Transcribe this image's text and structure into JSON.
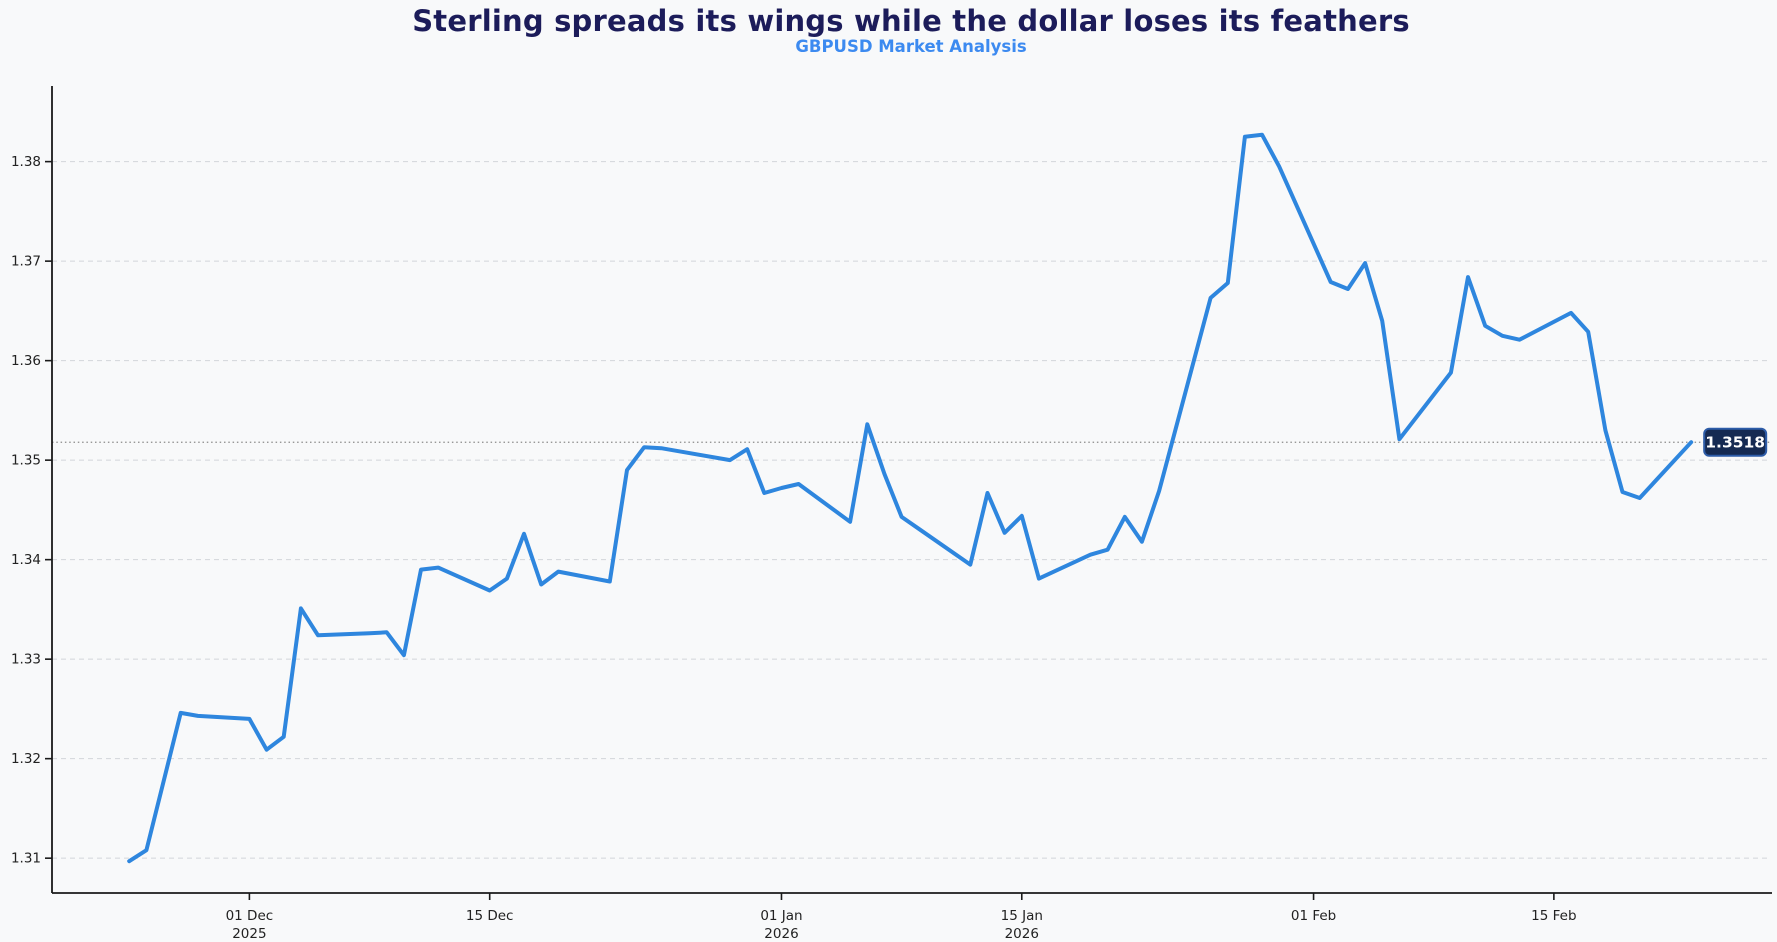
{
  "header": {
    "title": "Sterling spreads its wings while the dollar loses its feathers",
    "subtitle": "GBPUSD Market Analysis"
  },
  "annotation": {
    "label": "1.3518",
    "box_fill": "#152a52",
    "box_border": "#2d5ca8",
    "text_color": "#ffffff"
  },
  "colors": {
    "background": "#f8f9fa",
    "title": "#1c1c5a",
    "subtitle": "#3c8af0",
    "line": "#2e86de",
    "grid": "#d2d5da",
    "price_dotted_line": "#8a8a8a",
    "spine": "#1a1a1a",
    "tick_label": "#222222"
  },
  "chart_data": {
    "type": "line",
    "title": "Sterling spreads its wings while the dollar loses its feathers",
    "subtitle": "GBPUSD Market Analysis",
    "xlabel": "",
    "ylabel": "",
    "grid": "horizontal-dashed",
    "legend": "none",
    "current_price": 1.3518,
    "current_price_label": "1.3518",
    "ylim": [
      1.3065,
      1.3876
    ],
    "xlim": [
      "2025-11-19T12:00:00",
      "2026-02-27T17:00:00"
    ],
    "yticks": [
      1.31,
      1.32,
      1.33,
      1.34,
      1.35,
      1.36,
      1.37,
      1.38
    ],
    "ytick_labels": [
      "1.31",
      "1.32",
      "1.33",
      "1.34",
      "1.35",
      "1.36",
      "1.37",
      "1.38"
    ],
    "xticks": [
      {
        "date": "2025-12-01",
        "label": "01 Dec",
        "year": "2025"
      },
      {
        "date": "2025-12-15",
        "label": "15 Dec",
        "year": ""
      },
      {
        "date": "2026-01-01",
        "label": "01 Jan",
        "year": "2026"
      },
      {
        "date": "2026-01-15",
        "label": "15 Jan",
        "year": "2026"
      },
      {
        "date": "2026-02-01",
        "label": "01 Feb",
        "year": ""
      },
      {
        "date": "2026-02-15",
        "label": "15 Feb",
        "year": ""
      }
    ],
    "series": [
      {
        "name": "GBPUSD",
        "color": "#2e86de",
        "dates": [
          "2025-11-24",
          "2025-11-25",
          "2025-11-27",
          "2025-11-28",
          "2025-12-01",
          "2025-12-02",
          "2025-12-03",
          "2025-12-04",
          "2025-12-05",
          "2025-12-08",
          "2025-12-09",
          "2025-12-10",
          "2025-12-11",
          "2025-12-12",
          "2025-12-15",
          "2025-12-16",
          "2025-12-17",
          "2025-12-18",
          "2025-12-19",
          "2025-12-22",
          "2025-12-23",
          "2025-12-24",
          "2025-12-25",
          "2025-12-26",
          "2025-12-29",
          "2025-12-30",
          "2025-12-31",
          "2026-01-01",
          "2026-01-02",
          "2026-01-05",
          "2026-01-06",
          "2026-01-07",
          "2026-01-08",
          "2026-01-09",
          "2026-01-12",
          "2026-01-13",
          "2026-01-14",
          "2026-01-15",
          "2026-01-16",
          "2026-01-19",
          "2026-01-20",
          "2026-01-21",
          "2026-01-22",
          "2026-01-23",
          "2026-01-26",
          "2026-01-27",
          "2026-01-28",
          "2026-01-29",
          "2026-01-30",
          "2026-02-02",
          "2026-02-03",
          "2026-02-04",
          "2026-02-05",
          "2026-02-06",
          "2026-02-09",
          "2026-02-10",
          "2026-02-11",
          "2026-02-12",
          "2026-02-13",
          "2026-02-16",
          "2026-02-17",
          "2026-02-18",
          "2026-02-19",
          "2026-02-20",
          "2026-02-23"
        ],
        "values": [
          1.3097,
          1.3108,
          1.3246,
          1.3243,
          1.324,
          1.3209,
          1.3222,
          1.3351,
          1.3324,
          1.3326,
          1.3327,
          1.3304,
          1.339,
          1.3392,
          1.3369,
          1.3381,
          1.3426,
          1.3375,
          1.3388,
          1.3378,
          1.349,
          1.3513,
          1.3512,
          1.3509,
          1.35,
          1.3511,
          1.3467,
          1.3472,
          1.3476,
          1.3438,
          1.3536,
          1.3486,
          1.3443,
          1.3431,
          1.3395,
          1.3467,
          1.3427,
          1.3444,
          1.3381,
          1.3405,
          1.341,
          1.3443,
          1.3418,
          1.3469,
          1.3663,
          1.3678,
          1.3825,
          1.3827,
          1.3795,
          1.3679,
          1.3672,
          1.3698,
          1.364,
          1.3521,
          1.3588,
          1.3684,
          1.3635,
          1.3625,
          1.3621,
          1.3648,
          1.3629,
          1.353,
          1.3468,
          1.3462,
          1.3518
        ]
      }
    ]
  }
}
